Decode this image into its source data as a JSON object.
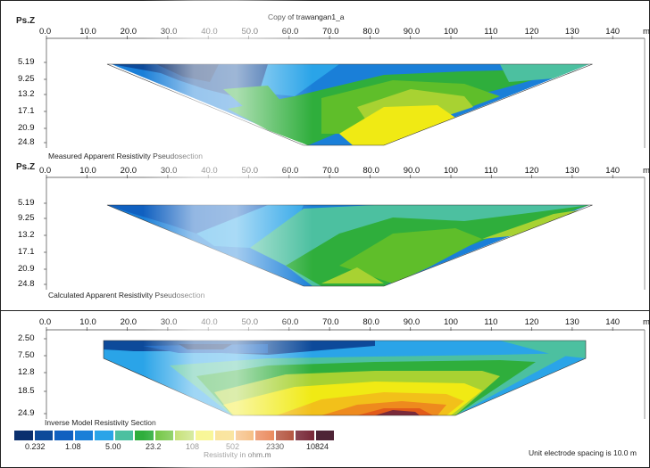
{
  "title": "Copy of trawangan1_a",
  "panels": [
    {
      "name": "measured",
      "y_label": "Ps.Z",
      "caption": "Measured Apparent Resistivity Pseudosection",
      "x_ticks": [
        "0.0",
        "10.0",
        "20.0",
        "30.0",
        "40.0",
        "50.0",
        "60.0",
        "70.0",
        "80.0",
        "90.0",
        "100",
        "110",
        "120",
        "130",
        "140"
      ],
      "y_ticks": [
        "5.19",
        "9.25",
        "13.2",
        "17.1",
        "20.9",
        "24.8"
      ],
      "unit": "m"
    },
    {
      "name": "calculated",
      "y_label": "Ps.Z",
      "caption": "Calculated Apparent Resistivity Pseudosection",
      "x_ticks": [
        "0.0",
        "10.0",
        "20.0",
        "30.0",
        "40.0",
        "50.0",
        "60.0",
        "70.0",
        "80.0",
        "90.0",
        "100",
        "110",
        "120",
        "130",
        "140"
      ],
      "y_ticks": [
        "5.19",
        "9.25",
        "13.2",
        "17.1",
        "20.9",
        "24.8"
      ],
      "unit": "m"
    },
    {
      "name": "inverse",
      "y_label": "",
      "caption": "Inverse Model Resistivity Section",
      "x_ticks": [
        "0.0",
        "10.0",
        "20.0",
        "30.0",
        "40.0",
        "50.0",
        "60.0",
        "70.0",
        "80.0",
        "90.0",
        "100",
        "110",
        "120",
        "130",
        "140"
      ],
      "y_ticks": [
        "2.50",
        "7.50",
        "12.8",
        "18.5",
        "24.9"
      ],
      "unit": "m"
    }
  ],
  "chart_data": [
    {
      "type": "heatmap",
      "title": "Measured Apparent Resistivity Pseudosection",
      "xlabel": "",
      "ylabel": "Ps.Z",
      "xlim": [
        0,
        140
      ],
      "ylim": [
        5.19,
        24.8
      ],
      "data_extent_x": [
        15,
        135
      ]
    },
    {
      "type": "heatmap",
      "title": "Calculated Apparent Resistivity Pseudosection",
      "xlabel": "",
      "ylabel": "Ps.Z",
      "xlim": [
        0,
        140
      ],
      "ylim": [
        5.19,
        24.8
      ],
      "data_extent_x": [
        15,
        135
      ]
    },
    {
      "type": "heatmap",
      "title": "Inverse Model Resistivity Section",
      "xlabel": "",
      "ylabel": "",
      "xlim": [
        0,
        140
      ],
      "ylim": [
        2.5,
        24.9
      ],
      "data_extent_x": [
        15,
        135
      ]
    }
  ],
  "legend": {
    "colors": [
      "#0a2f6e",
      "#0d4a9a",
      "#1060c0",
      "#1a7fd8",
      "#2aa4e8",
      "#4cc0a0",
      "#2fae3c",
      "#5fbe2a",
      "#a8d232",
      "#f0ea14",
      "#f2c01a",
      "#ee8a1e",
      "#e25a1a",
      "#a83a22",
      "#7a2a3a",
      "#4e2436"
    ],
    "values": [
      "0.232",
      "1.08",
      "5.00",
      "23.2",
      "108",
      "502",
      "2330",
      "10824"
    ],
    "units_label": "Resistivity in ohm.m"
  },
  "footer": {
    "electrode_spacing": "Unit electrode spacing is 10.0 m"
  }
}
